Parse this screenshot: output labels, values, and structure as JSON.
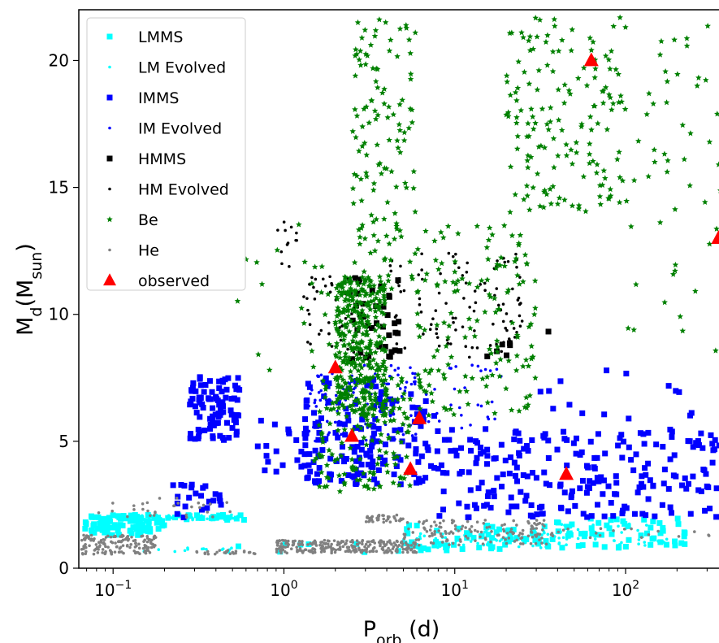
{
  "chart_data": {
    "type": "scatter",
    "xscale": "log",
    "xlim": [
      0.063,
      360
    ],
    "ylim": [
      0,
      22
    ],
    "xlabel": "P_orb (d)",
    "xlabel_main": "P",
    "xlabel_sub": "orb",
    "xlabel_unit": " (d)",
    "ylabel": "M_d(M_sun)",
    "ylabel_main": "M",
    "ylabel_sub1": "d",
    "ylabel_mid": "(M",
    "ylabel_sub2": "sun",
    "ylabel_end": ")",
    "x_ticks": [
      {
        "value": 0.1,
        "base": "10",
        "exp": "−1"
      },
      {
        "value": 1,
        "base": "10",
        "exp": "0"
      },
      {
        "value": 10,
        "base": "10",
        "exp": "1"
      },
      {
        "value": 100,
        "base": "10",
        "exp": "2"
      }
    ],
    "y_ticks": [
      0,
      5,
      10,
      15,
      20
    ],
    "y_tick_labels": [
      "0",
      "5",
      "10",
      "15",
      "20"
    ],
    "grid": false,
    "legend_position": "top-left",
    "series": [
      {
        "name": "LMMS",
        "marker": "square",
        "color": "#00ffff",
        "size": 7,
        "regions": [
          {
            "x": [
              0.068,
              0.2
            ],
            "y": [
              1.3,
              2.1
            ],
            "n": 95
          },
          {
            "x": [
              0.2,
              0.6
            ],
            "y": [
              1.9,
              2.1
            ],
            "n": 22
          },
          {
            "x": [
              0.5,
              12
            ],
            "y": [
              0.6,
              1.0
            ],
            "n": 12
          },
          {
            "x": [
              5,
              30
            ],
            "y": [
              0.7,
              1.7
            ],
            "n": 55
          },
          {
            "x": [
              30,
              240
            ],
            "y": [
              0.8,
              2.0
            ],
            "n": 65
          }
        ]
      },
      {
        "name": "LM Evolved",
        "marker": "dot",
        "color": "#00ffff",
        "size": 3,
        "regions": [
          {
            "x": [
              0.1,
              0.6
            ],
            "y": [
              1.9,
              2.1
            ],
            "n": 40
          },
          {
            "x": [
              0.15,
              0.5
            ],
            "y": [
              0.6,
              0.8
            ],
            "n": 15
          },
          {
            "x": [
              5,
              40
            ],
            "y": [
              0.8,
              1.5
            ],
            "n": 60
          },
          {
            "x": [
              40,
              200
            ],
            "y": [
              0.9,
              1.8
            ],
            "n": 40
          }
        ]
      },
      {
        "name": "IMMS",
        "marker": "square",
        "color": "#0000ff",
        "size": 7,
        "regions": [
          {
            "x": [
              0.28,
              0.55
            ],
            "y": [
              5.0,
              7.6
            ],
            "n": 95
          },
          {
            "x": [
              0.22,
              0.45
            ],
            "y": [
              2.0,
              3.5
            ],
            "n": 24
          },
          {
            "x": [
              0.7,
              3.0
            ],
            "y": [
              3.5,
              6.0
            ],
            "n": 45
          },
          {
            "x": [
              1.3,
              4.0
            ],
            "y": [
              3.3,
              7.5
            ],
            "n": 90
          },
          {
            "x": [
              3,
              8
            ],
            "y": [
              3.3,
              7.0
            ],
            "n": 60
          },
          {
            "x": [
              8,
              360
            ],
            "y": [
              2.0,
              5.5
            ],
            "n": 230
          },
          {
            "x": [
              30,
              250
            ],
            "y": [
              5.5,
              7.8
            ],
            "n": 15
          }
        ]
      },
      {
        "name": "IM Evolved",
        "marker": "dot",
        "color": "#0000ff",
        "size": 3,
        "regions": [
          {
            "x": [
              1.4,
              6
            ],
            "y": [
              5.0,
              8.0
            ],
            "n": 100
          },
          {
            "x": [
              5,
              20
            ],
            "y": [
              5.5,
              8.0
            ],
            "n": 40
          }
        ]
      },
      {
        "name": "HMMS",
        "marker": "square",
        "color": "#000000",
        "size": 7,
        "regions": [
          {
            "x": [
              2.4,
              4.8
            ],
            "y": [
              8.2,
              11.5
            ],
            "n": 40
          },
          {
            "x": [
              15,
              22
            ],
            "y": [
              8.3,
              9.0
            ],
            "n": 6
          },
          {
            "x": [
              34,
              36
            ],
            "y": [
              9.2,
              9.4
            ],
            "n": 1
          }
        ]
      },
      {
        "name": "HM Evolved",
        "marker": "dot",
        "color": "#000000",
        "size": 3,
        "regions": [
          {
            "x": [
              0.9,
              1.2
            ],
            "y": [
              11.8,
              13.7
            ],
            "n": 12
          },
          {
            "x": [
              1.3,
              2.6
            ],
            "y": [
              8.5,
              11.5
            ],
            "n": 40
          },
          {
            "x": [
              4,
              25
            ],
            "y": [
              8.3,
              12.5
            ],
            "n": 100
          }
        ]
      },
      {
        "name": "Be",
        "marker": "star",
        "color": "#008000",
        "size": 4,
        "regions": [
          {
            "x": [
              2.0,
              4.0
            ],
            "y": [
              6.0,
              11.5
            ],
            "n": 350
          },
          {
            "x": [
              1.5,
              5.5
            ],
            "y": [
              3.0,
              7.5
            ],
            "n": 150
          },
          {
            "x": [
              2.5,
              6.0
            ],
            "y": [
              11.0,
              21.8
            ],
            "n": 130
          },
          {
            "x": [
              6,
              30
            ],
            "y": [
              6.0,
              13.5
            ],
            "n": 150
          },
          {
            "x": [
              20,
              100
            ],
            "y": [
              14.0,
              21.8
            ],
            "n": 160
          },
          {
            "x": [
              100,
              360
            ],
            "y": [
              8.5,
              21.5
            ],
            "n": 50
          },
          {
            "x": [
              0.5,
              2.0
            ],
            "y": [
              7.5,
              14.0
            ],
            "n": 20
          }
        ]
      },
      {
        "name": "He",
        "marker": "dot",
        "color": "#808080",
        "size": 3,
        "regions": [
          {
            "x": [
              0.065,
              0.18
            ],
            "y": [
              0.55,
              1.3
            ],
            "n": 150
          },
          {
            "x": [
              0.08,
              0.5
            ],
            "y": [
              2.0,
              2.8
            ],
            "n": 30
          },
          {
            "x": [
              0.3,
              0.7
            ],
            "y": [
              0.55,
              0.7
            ],
            "n": 25
          },
          {
            "x": [
              0.9,
              6
            ],
            "y": [
              0.6,
              1.1
            ],
            "n": 260
          },
          {
            "x": [
              3,
              5
            ],
            "y": [
              1.8,
              2.1
            ],
            "n": 40
          },
          {
            "x": [
              5,
              35
            ],
            "y": [
              0.9,
              1.9
            ],
            "n": 140
          },
          {
            "x": [
              35,
              360
            ],
            "y": [
              1.2,
              1.6
            ],
            "n": 20
          }
        ]
      },
      {
        "name": "observed",
        "marker": "triangle",
        "color": "#ff0000",
        "size": 9,
        "points": [
          {
            "x": 2.0,
            "y": 7.9
          },
          {
            "x": 2.5,
            "y": 5.2
          },
          {
            "x": 5.5,
            "y": 3.9
          },
          {
            "x": 6.2,
            "y": 5.9
          },
          {
            "x": 45,
            "y": 3.7
          },
          {
            "x": 63,
            "y": 20.0
          },
          {
            "x": 350,
            "y": 13.0
          }
        ]
      }
    ]
  }
}
